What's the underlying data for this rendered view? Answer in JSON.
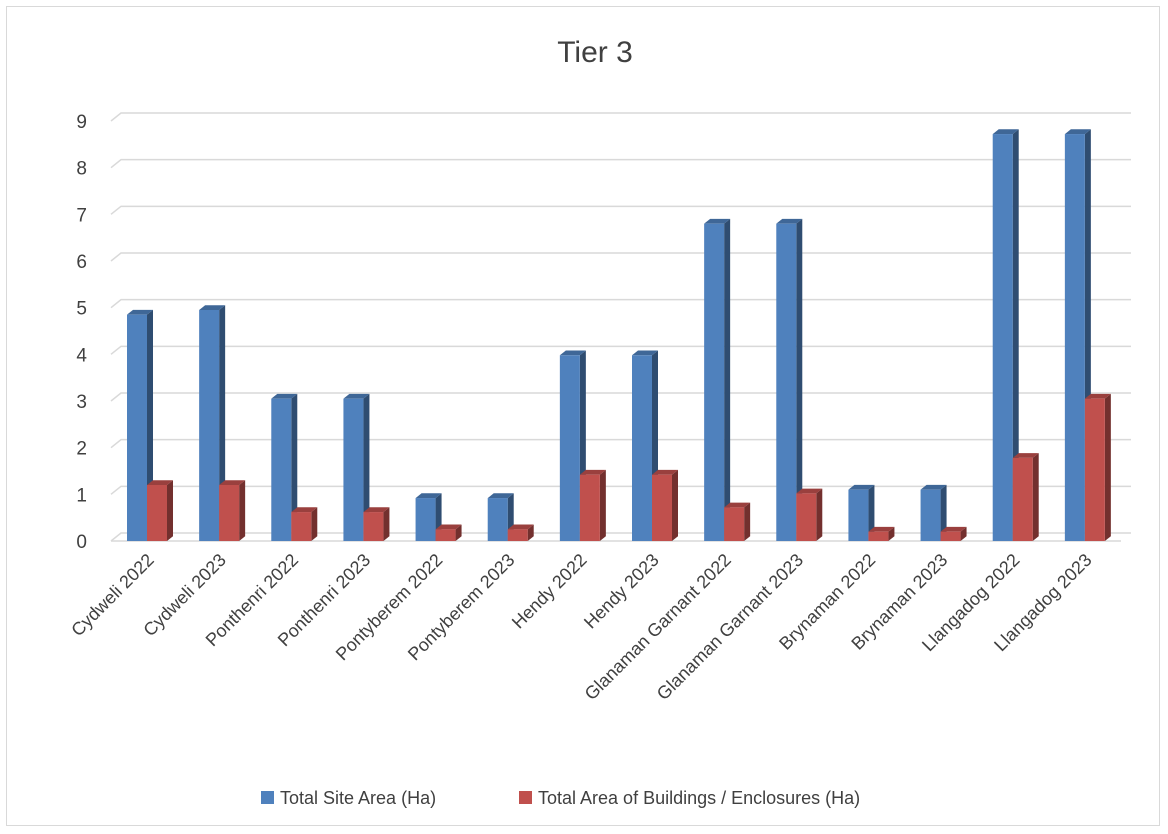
{
  "chart_data": {
    "type": "bar",
    "title": "Tier 3",
    "xlabel": "",
    "ylabel": "",
    "ylim": [
      0,
      9
    ],
    "yticks": [
      0,
      1,
      2,
      3,
      4,
      5,
      6,
      7,
      8,
      9
    ],
    "grid": true,
    "legend_position": "bottom",
    "categories": [
      "Cydweli 2022",
      "Cydweli 2023",
      "Ponthenri 2022",
      "Ponthenri 2023",
      "Pontyberem 2022",
      "Pontyberem 2023",
      "Hendy 2022",
      "Hendy 2023",
      "Glanaman  Garnant 2022",
      "Glanaman  Garnant 2023",
      "Brynaman 2022",
      "Brynaman 2023",
      "Llangadog 2022",
      "Llangadog 2023"
    ],
    "series": [
      {
        "name": "Total Site Area (Ha)",
        "color": "#4f81bd",
        "values": [
          4.85,
          4.95,
          3.05,
          3.05,
          0.92,
          0.92,
          3.98,
          3.98,
          6.8,
          6.8,
          1.1,
          1.1,
          8.72,
          8.72
        ]
      },
      {
        "name": "Total Area of Buildings / Enclosures (Ha)",
        "color": "#c0504d",
        "values": [
          1.2,
          1.2,
          0.62,
          0.62,
          0.25,
          0.25,
          1.42,
          1.42,
          0.72,
          1.02,
          0.2,
          0.2,
          1.78,
          3.05
        ]
      }
    ]
  }
}
